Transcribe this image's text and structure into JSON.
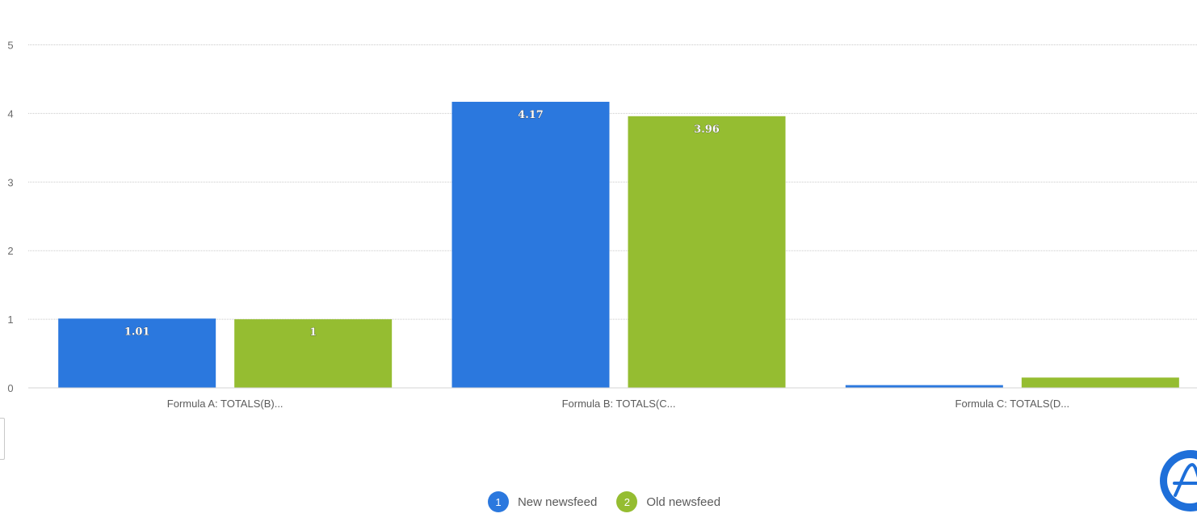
{
  "chart_data": {
    "type": "bar",
    "categories": [
      "Formula A: TOTALS(B)...",
      "Formula B: TOTALS(C...",
      "Formula C: TOTALS(D..."
    ],
    "series": [
      {
        "name": "New newsfeed",
        "badge": "1",
        "color": "#2b78de",
        "values": [
          1.01,
          4.17,
          0.04
        ],
        "data_labels": [
          "1.01",
          "4.17",
          ""
        ]
      },
      {
        "name": "Old newsfeed",
        "badge": "2",
        "color": "#95bd31",
        "values": [
          1.0,
          3.96,
          0.15
        ],
        "data_labels": [
          "1",
          "3.96",
          ""
        ]
      }
    ],
    "yticks": [
      "0",
      "1",
      "2",
      "3",
      "4",
      "5"
    ],
    "ylim": [
      0,
      5
    ],
    "grid": true,
    "legend_position": "bottom-center"
  },
  "widget": {
    "icon": "amplitude-logo-icon"
  }
}
